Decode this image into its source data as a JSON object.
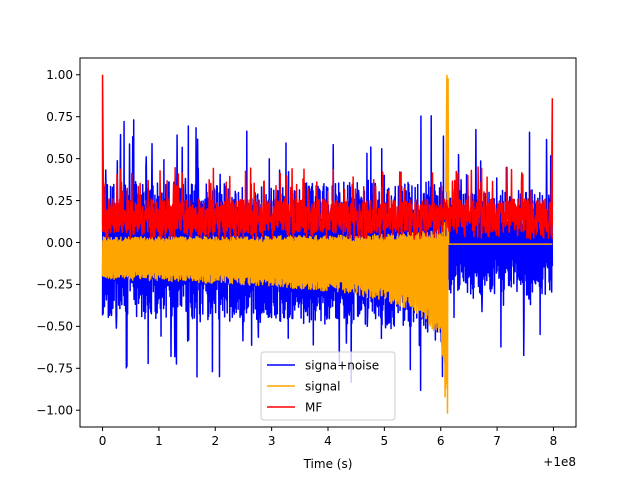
{
  "chart_data": {
    "type": "line",
    "title": "",
    "xlabel": "Time (s)",
    "ylabel": "",
    "x_offset_label": "+1e8",
    "xlim": [
      -0.4,
      8.4
    ],
    "ylim": [
      -1.1,
      1.1
    ],
    "xticks": [
      0,
      1,
      2,
      3,
      4,
      5,
      6,
      7,
      8
    ],
    "xtick_labels": [
      "0",
      "1",
      "2",
      "3",
      "4",
      "5",
      "6",
      "7",
      "8"
    ],
    "yticks": [
      1.0,
      0.75,
      0.5,
      0.25,
      0.0,
      -0.25,
      -0.5,
      -0.75,
      -1.0
    ],
    "ytick_labels": [
      "1.00",
      "0.75",
      "0.50",
      "0.25",
      "0.00",
      "−0.25",
      "−0.50",
      "−0.75",
      "−1.00"
    ],
    "grid": false,
    "legend_position": "lower-center",
    "merger_time": 6.12,
    "series": [
      {
        "name": "signa+noise",
        "color": "#0000ff",
        "description": "noisy spikes between about -0.75 and 0.9"
      },
      {
        "name": "signal",
        "color": "#ffa500",
        "description": "chirp growing to +1.00 / -1.02 at x≈6.12, flat near -0.01 afterwards"
      },
      {
        "name": "MF",
        "color": "#ff0000",
        "description": "matched filter output, mostly 0.05-0.3, peaks 1.00 at x=0 and 0.86 at x=8"
      }
    ]
  }
}
